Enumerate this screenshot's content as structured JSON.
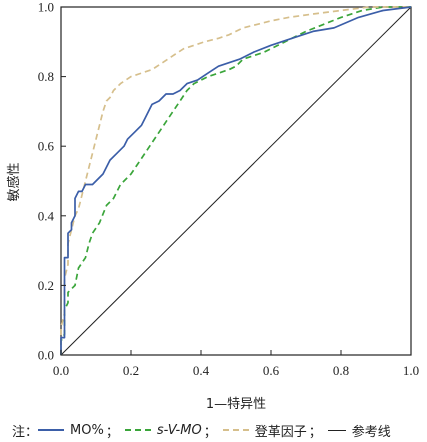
{
  "chart_data": {
    "type": "line",
    "xlabel": "1—特异性",
    "ylabel": "敏感性",
    "xlim": [
      0,
      1
    ],
    "ylim": [
      0,
      1
    ],
    "xticks": [
      "0.0",
      "0.2",
      "0.4",
      "0.6",
      "0.8",
      "1.0"
    ],
    "yticks": [
      "0.0",
      "0.2",
      "0.4",
      "0.6",
      "0.8",
      "1.0"
    ],
    "grid": false,
    "legend_position": "bottom",
    "legend_prefix": "注：",
    "legend_separator": "；",
    "series": [
      {
        "name": "MO%",
        "color": "#3b5ea8",
        "style": "solid",
        "points": [
          [
            0,
            0
          ],
          [
            0,
            0.05
          ],
          [
            0.01,
            0.05
          ],
          [
            0.01,
            0.28
          ],
          [
            0.02,
            0.28
          ],
          [
            0.02,
            0.35
          ],
          [
            0.03,
            0.36
          ],
          [
            0.03,
            0.38
          ],
          [
            0.04,
            0.4
          ],
          [
            0.04,
            0.45
          ],
          [
            0.05,
            0.47
          ],
          [
            0.06,
            0.47
          ],
          [
            0.07,
            0.49
          ],
          [
            0.09,
            0.49
          ],
          [
            0.11,
            0.51
          ],
          [
            0.12,
            0.52
          ],
          [
            0.14,
            0.56
          ],
          [
            0.16,
            0.58
          ],
          [
            0.18,
            0.6
          ],
          [
            0.19,
            0.62
          ],
          [
            0.21,
            0.64
          ],
          [
            0.23,
            0.66
          ],
          [
            0.24,
            0.68
          ],
          [
            0.25,
            0.7
          ],
          [
            0.26,
            0.72
          ],
          [
            0.28,
            0.73
          ],
          [
            0.3,
            0.75
          ],
          [
            0.32,
            0.75
          ],
          [
            0.34,
            0.76
          ],
          [
            0.36,
            0.78
          ],
          [
            0.39,
            0.79
          ],
          [
            0.42,
            0.81
          ],
          [
            0.45,
            0.83
          ],
          [
            0.48,
            0.84
          ],
          [
            0.51,
            0.85
          ],
          [
            0.55,
            0.87
          ],
          [
            0.6,
            0.89
          ],
          [
            0.66,
            0.91
          ],
          [
            0.72,
            0.93
          ],
          [
            0.78,
            0.94
          ],
          [
            0.85,
            0.97
          ],
          [
            0.92,
            0.99
          ],
          [
            1,
            1
          ]
        ]
      },
      {
        "name": "s-V-MO",
        "color": "#3aa53a",
        "style": "dashed",
        "points": [
          [
            0,
            0
          ],
          [
            0,
            0.04
          ],
          [
            0.01,
            0.06
          ],
          [
            0.01,
            0.13
          ],
          [
            0.02,
            0.15
          ],
          [
            0.02,
            0.18
          ],
          [
            0.04,
            0.2
          ],
          [
            0.05,
            0.25
          ],
          [
            0.07,
            0.28
          ],
          [
            0.08,
            0.32
          ],
          [
            0.09,
            0.35
          ],
          [
            0.11,
            0.38
          ],
          [
            0.13,
            0.43
          ],
          [
            0.15,
            0.45
          ],
          [
            0.17,
            0.49
          ],
          [
            0.2,
            0.52
          ],
          [
            0.22,
            0.55
          ],
          [
            0.24,
            0.58
          ],
          [
            0.26,
            0.61
          ],
          [
            0.28,
            0.64
          ],
          [
            0.3,
            0.67
          ],
          [
            0.32,
            0.7
          ],
          [
            0.34,
            0.73
          ],
          [
            0.36,
            0.76
          ],
          [
            0.38,
            0.78
          ],
          [
            0.4,
            0.79
          ],
          [
            0.42,
            0.8
          ],
          [
            0.45,
            0.81
          ],
          [
            0.48,
            0.82
          ],
          [
            0.5,
            0.83
          ],
          [
            0.52,
            0.85
          ],
          [
            0.55,
            0.86
          ],
          [
            0.58,
            0.87
          ],
          [
            0.62,
            0.89
          ],
          [
            0.66,
            0.91
          ],
          [
            0.7,
            0.93
          ],
          [
            0.75,
            0.95
          ],
          [
            0.8,
            0.97
          ],
          [
            0.86,
            0.99
          ],
          [
            0.92,
            1.0
          ],
          [
            1,
            1
          ]
        ]
      },
      {
        "name": "登革因子",
        "color": "#d6bf8c",
        "style": "dashed",
        "points": [
          [
            0,
            0
          ],
          [
            0,
            0.08
          ],
          [
            0.01,
            0.12
          ],
          [
            0.01,
            0.22
          ],
          [
            0.02,
            0.26
          ],
          [
            0.02,
            0.32
          ],
          [
            0.03,
            0.36
          ],
          [
            0.04,
            0.4
          ],
          [
            0.05,
            0.42
          ],
          [
            0.06,
            0.46
          ],
          [
            0.07,
            0.5
          ],
          [
            0.08,
            0.54
          ],
          [
            0.09,
            0.58
          ],
          [
            0.1,
            0.62
          ],
          [
            0.11,
            0.66
          ],
          [
            0.12,
            0.7
          ],
          [
            0.13,
            0.73
          ],
          [
            0.14,
            0.74
          ],
          [
            0.15,
            0.76
          ],
          [
            0.17,
            0.78
          ],
          [
            0.2,
            0.8
          ],
          [
            0.23,
            0.81
          ],
          [
            0.26,
            0.82
          ],
          [
            0.29,
            0.84
          ],
          [
            0.32,
            0.86
          ],
          [
            0.35,
            0.88
          ],
          [
            0.38,
            0.89
          ],
          [
            0.41,
            0.9
          ],
          [
            0.45,
            0.91
          ],
          [
            0.48,
            0.92
          ],
          [
            0.52,
            0.94
          ],
          [
            0.56,
            0.95
          ],
          [
            0.6,
            0.96
          ],
          [
            0.65,
            0.97
          ],
          [
            0.72,
            0.98
          ],
          [
            0.8,
            0.99
          ],
          [
            0.88,
            1.0
          ],
          [
            1,
            1
          ]
        ]
      },
      {
        "name": "参考线",
        "color": "#222222",
        "style": "solid",
        "points": [
          [
            0,
            0
          ],
          [
            1,
            1
          ]
        ]
      }
    ]
  }
}
